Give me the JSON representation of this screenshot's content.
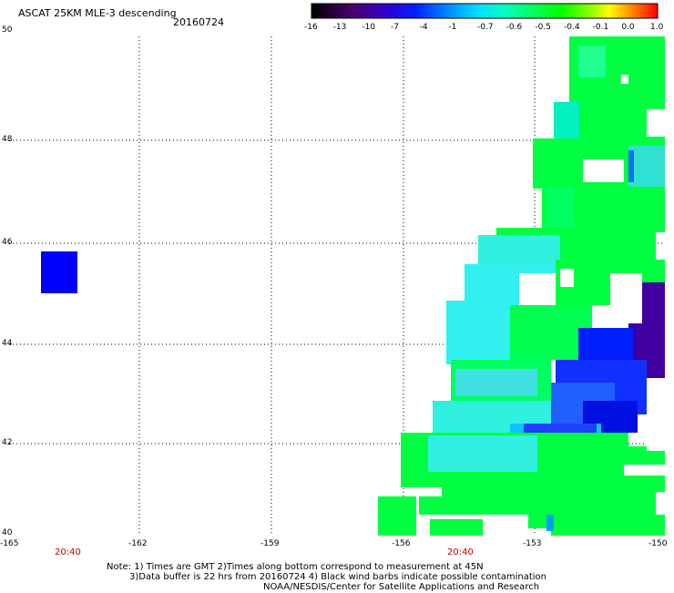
{
  "header": {
    "title": "ASCAT 25KM MLE-3 descending",
    "date": "20160724"
  },
  "colorbar": {
    "labels": [
      "-16",
      "-13",
      "-10",
      "-7",
      "-4",
      "-1",
      "-0.7",
      "-0.6",
      "-0.5",
      "-0.4",
      "-0.1",
      "0.0",
      "1.0"
    ],
    "colors": [
      "#000000",
      "#3a0050",
      "#5a00a0",
      "#2000e0",
      "#0040ff",
      "#00a0ff",
      "#00ffff",
      "#00ff80",
      "#00ff00",
      "#80ff00",
      "#ffff00",
      "#ff8000",
      "#ff0000"
    ]
  },
  "map": {
    "lat_labels": [
      "50",
      "48",
      "46",
      "44",
      "42",
      "40"
    ],
    "lon_labels": [
      "-165",
      "-162",
      "-159",
      "-156",
      "-153",
      "-150"
    ],
    "time_labels": [
      "20:40",
      "20:40"
    ]
  },
  "notes": {
    "line1": "Note: 1) Times are GMT 2)Times along bottom correspond to measurement at 45N",
    "line2": "3)Data buffer is 22 hrs from 20160724 4) Black wind barbs indicate possible contamination",
    "line3": "NOAA/NESDIS/Center for Satellite Applications and Research"
  }
}
